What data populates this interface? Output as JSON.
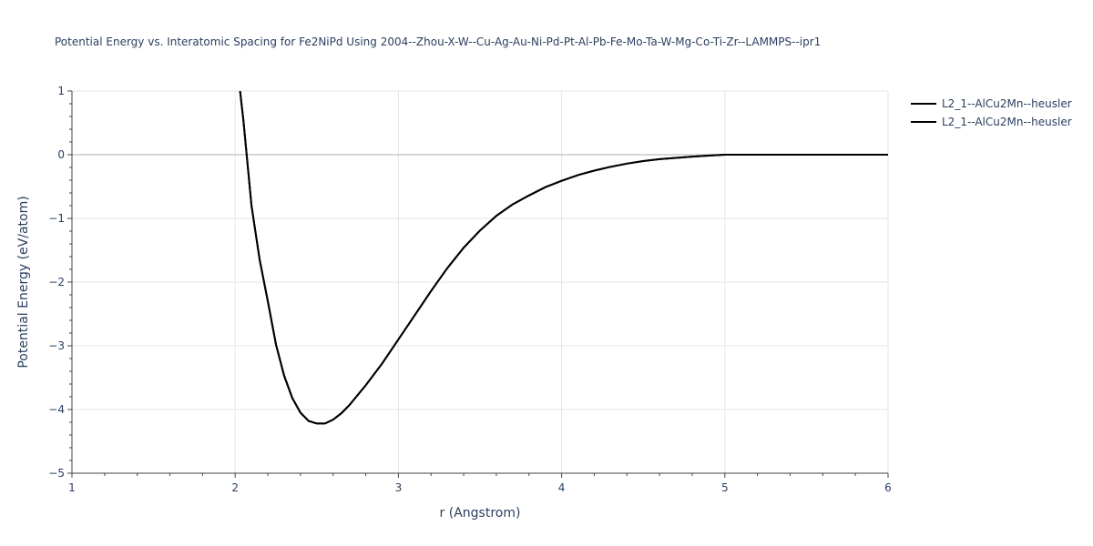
{
  "chart_data": {
    "type": "line",
    "title": "Potential Energy vs. Interatomic Spacing for Fe2NiPd Using 2004--Zhou-X-W--Cu-Ag-Au-Ni-Pd-Pt-Al-Pb-Fe-Mo-Ta-W-Mg-Co-Ti-Zr--LAMMPS--ipr1",
    "xlabel": "r (Angstrom)",
    "ylabel": "Potential Energy (eV/atom)",
    "xlim": [
      1,
      6
    ],
    "ylim": [
      -5,
      1
    ],
    "xticks": [
      1,
      2,
      3,
      4,
      5,
      6
    ],
    "xtick_labels": [
      "1",
      "2",
      "3",
      "4",
      "5",
      "6"
    ],
    "yticks": [
      -5,
      -4,
      -3,
      -2,
      -1,
      0,
      1
    ],
    "ytick_labels": [
      "−5",
      "−4",
      "−3",
      "−2",
      "−1",
      "0",
      "1"
    ],
    "grid": true,
    "legend_position": "top-right",
    "series": [
      {
        "name": "L2_1--AlCu2Mn--heusler",
        "color": "#000000",
        "x": [
          2.03,
          2.05,
          2.1,
          2.15,
          2.2,
          2.25,
          2.3,
          2.35,
          2.4,
          2.45,
          2.5,
          2.55,
          2.6,
          2.65,
          2.7,
          2.8,
          2.9,
          3.0,
          3.1,
          3.2,
          3.3,
          3.4,
          3.5,
          3.6,
          3.7,
          3.8,
          3.9,
          4.0,
          4.1,
          4.2,
          4.3,
          4.4,
          4.5,
          4.6,
          4.7,
          4.8,
          4.9,
          5.0,
          5.2,
          5.4,
          5.6,
          5.8,
          6.0
        ],
        "y": [
          1.0,
          0.55,
          -0.8,
          -1.65,
          -2.3,
          -2.98,
          -3.47,
          -3.82,
          -4.05,
          -4.18,
          -4.22,
          -4.22,
          -4.16,
          -4.06,
          -3.93,
          -3.62,
          -3.28,
          -2.9,
          -2.52,
          -2.14,
          -1.78,
          -1.46,
          -1.19,
          -0.96,
          -0.78,
          -0.64,
          -0.51,
          -0.41,
          -0.32,
          -0.25,
          -0.19,
          -0.14,
          -0.1,
          -0.07,
          -0.05,
          -0.03,
          -0.015,
          0.0,
          0.0,
          0.0,
          0.0,
          0.0,
          0.0
        ]
      },
      {
        "name": "L2_1--AlCu2Mn--heusler",
        "color": "#000000",
        "x": [
          2.03,
          2.05,
          2.1,
          2.15,
          2.2,
          2.25,
          2.3,
          2.35,
          2.4,
          2.45,
          2.5,
          2.55,
          2.6,
          2.65,
          2.7,
          2.8,
          2.9,
          3.0,
          3.1,
          3.2,
          3.3,
          3.4,
          3.5,
          3.6,
          3.7,
          3.8,
          3.9,
          4.0,
          4.1,
          4.2,
          4.3,
          4.4,
          4.5,
          4.6,
          4.7,
          4.8,
          4.9,
          5.0,
          5.2,
          5.4,
          5.6,
          5.8,
          6.0
        ],
        "y": [
          1.0,
          0.55,
          -0.8,
          -1.65,
          -2.3,
          -2.98,
          -3.47,
          -3.82,
          -4.05,
          -4.18,
          -4.22,
          -4.22,
          -4.16,
          -4.06,
          -3.93,
          -3.62,
          -3.28,
          -2.9,
          -2.52,
          -2.14,
          -1.78,
          -1.46,
          -1.19,
          -0.96,
          -0.78,
          -0.64,
          -0.51,
          -0.41,
          -0.32,
          -0.25,
          -0.19,
          -0.14,
          -0.1,
          -0.07,
          -0.05,
          -0.03,
          -0.015,
          0.0,
          0.0,
          0.0,
          0.0,
          0.0,
          0.0
        ]
      }
    ]
  }
}
